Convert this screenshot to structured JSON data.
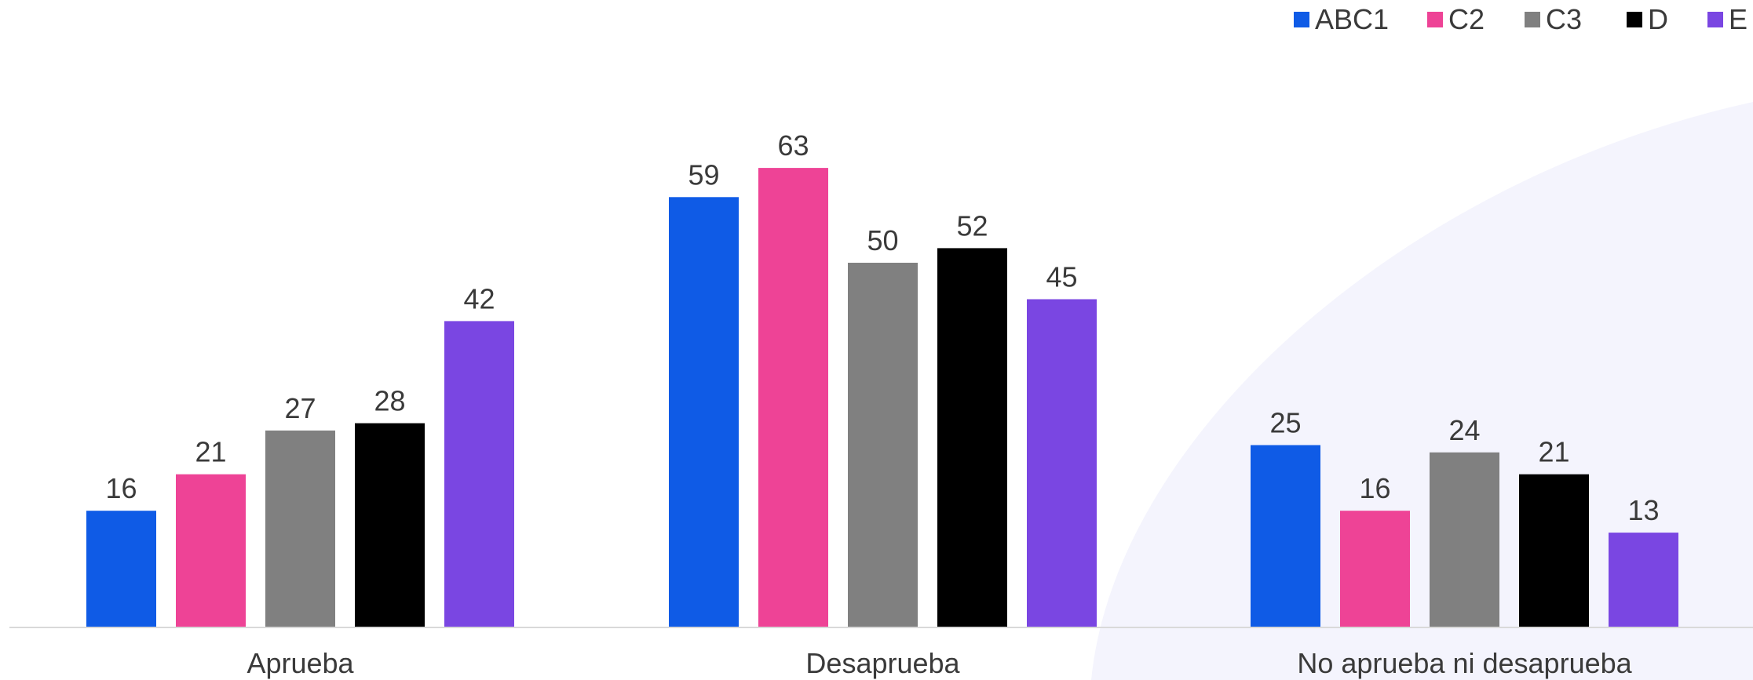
{
  "chart_data": {
    "type": "bar",
    "title": "",
    "xlabel": "",
    "ylabel": "",
    "ylim": [
      0,
      70
    ],
    "grid": false,
    "legend_position": "top-right",
    "categories": [
      "Aprueba",
      "Desaprueba",
      "No aprueba ni desaprueba"
    ],
    "series": [
      {
        "name": "ABC1",
        "color": "#0F5BE6",
        "values": [
          16,
          59,
          25
        ]
      },
      {
        "name": "C2",
        "color": "#EE4396",
        "values": [
          21,
          63,
          16
        ]
      },
      {
        "name": "C3",
        "color": "#808080",
        "values": [
          27,
          50,
          24
        ]
      },
      {
        "name": "D",
        "color": "#000000",
        "values": [
          28,
          52,
          21
        ]
      },
      {
        "name": "E",
        "color": "#7A46E2",
        "values": [
          42,
          45,
          13
        ]
      }
    ]
  }
}
